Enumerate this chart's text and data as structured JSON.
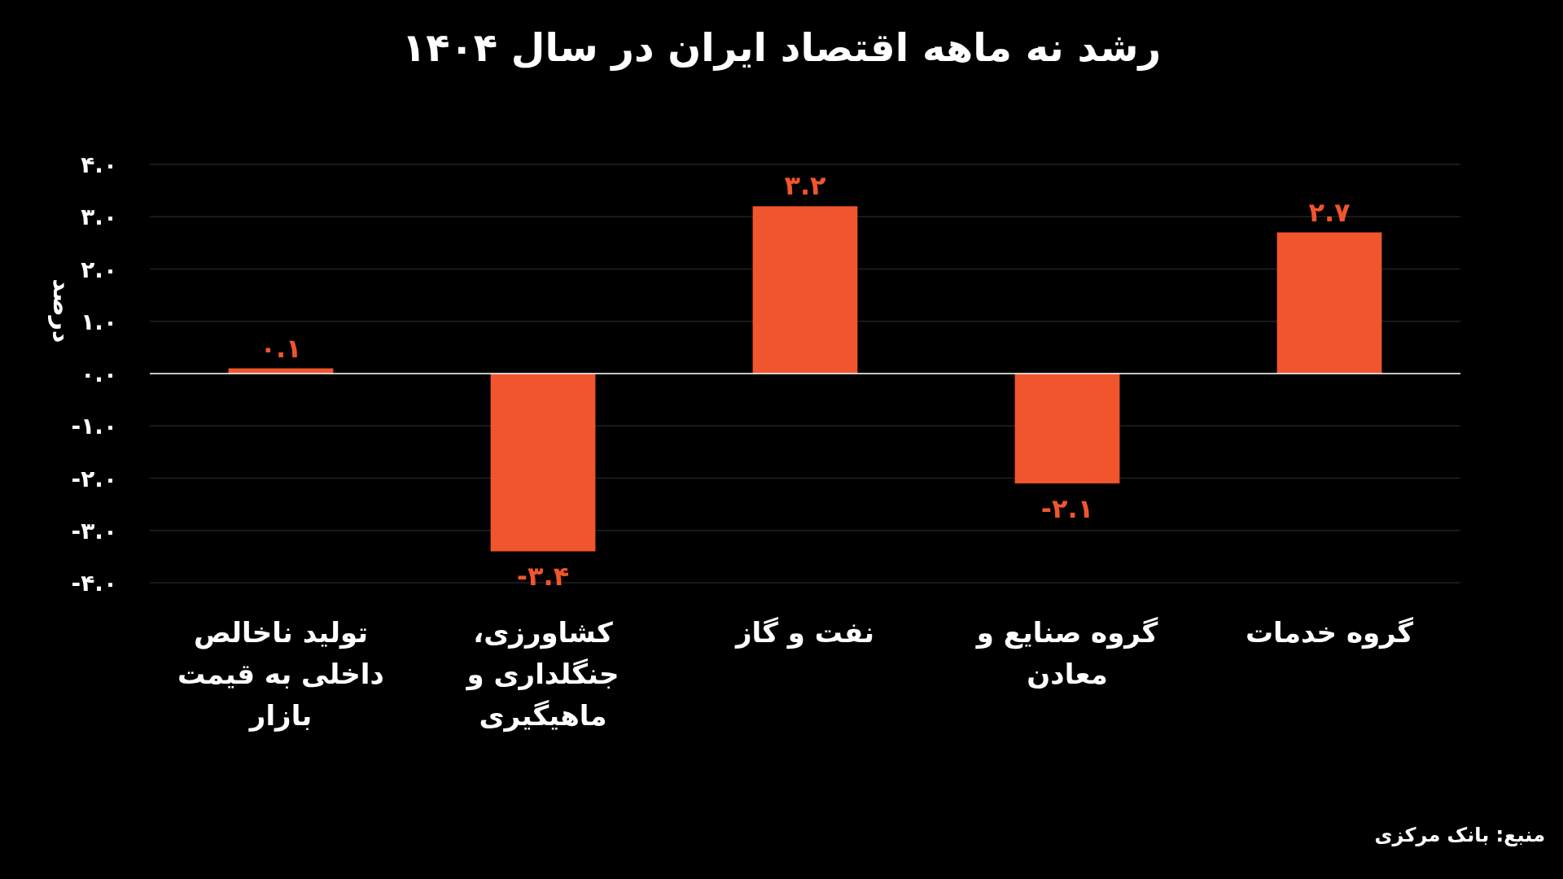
{
  "chart_data": {
    "type": "bar",
    "title": "رشد نه ماهه اقتصاد ایران در سال ۱۴۰۴",
    "ylabel": "درصد",
    "categories": [
      "تولید ناخالص داخلی به قیمت بازار",
      "کشاورزی، جنگلداری و ماهیگیری",
      "نفت و گاز",
      "گروه صنایع و معادن",
      "گروه خدمات"
    ],
    "values": [
      0.1,
      -3.4,
      3.2,
      -2.1,
      2.7
    ],
    "value_labels": [
      "۰.۱",
      "-۳.۴",
      "۳.۲",
      "-۲.۱",
      "۲.۷"
    ],
    "color": "#f0552d",
    "ylim": [
      -4,
      4
    ],
    "yticks": [
      {
        "value": -4,
        "label": "-۴.۰"
      },
      {
        "value": -3,
        "label": "-۳.۰"
      },
      {
        "value": -2,
        "label": "-۲.۰"
      },
      {
        "value": -1,
        "label": "-۱.۰"
      },
      {
        "value": 0,
        "label": "۰.۰"
      },
      {
        "value": 1,
        "label": "۱.۰"
      },
      {
        "value": 2,
        "label": "۲.۰"
      },
      {
        "value": 3,
        "label": "۳.۰"
      },
      {
        "value": 4,
        "label": "۴.۰"
      }
    ],
    "grid": "y",
    "annotations": [
      "منبع: بانک مرکزی"
    ]
  }
}
